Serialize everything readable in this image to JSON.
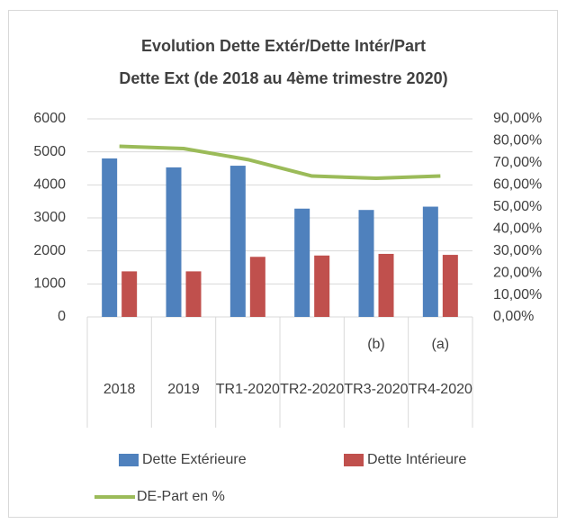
{
  "chart_data": {
    "type": "bar-line",
    "title": [
      "Evolution Dette Extér/Dette Intér/Part",
      "Dette Ext (de 2018 au 4ème trimestre 2020)"
    ],
    "categories": [
      "2018",
      "2019",
      "TR1-2020",
      "TR2-2020",
      "TR3-2020",
      "TR4-2020"
    ],
    "category_notes": [
      null,
      null,
      null,
      null,
      "(b)",
      "(a)"
    ],
    "series": [
      {
        "name": "Dette Extérieure",
        "color": "#4f81bd",
        "type": "bar",
        "values": [
          4800,
          4530,
          4580,
          3280,
          3240,
          3340
        ]
      },
      {
        "name": "Dette Intérieure",
        "color": "#c0504d",
        "type": "bar",
        "values": [
          1380,
          1380,
          1820,
          1860,
          1910,
          1880
        ]
      },
      {
        "name": "DE-Part en %",
        "color": "#9bbb59",
        "type": "line",
        "axis": "y2",
        "values": [
          77.5,
          76.5,
          71.5,
          64,
          63,
          64
        ]
      }
    ],
    "ylim": [
      0,
      6000
    ],
    "yticks": [
      0,
      1000,
      2000,
      3000,
      4000,
      5000,
      6000
    ],
    "y2lim": [
      0,
      90
    ],
    "y2ticks": [
      {
        "value": 0,
        "label": "0,00%"
      },
      {
        "value": 10,
        "label": "10,00%"
      },
      {
        "value": 20,
        "label": "20,00%"
      },
      {
        "value": 30,
        "label": "30,00%"
      },
      {
        "value": 40,
        "label": "40,00%"
      },
      {
        "value": 50,
        "label": "50,00%"
      },
      {
        "value": 60,
        "label": "60,00%"
      },
      {
        "value": 70,
        "label": "70,00%"
      },
      {
        "value": 80,
        "label": "80,00%"
      },
      {
        "value": 90,
        "label": "90,00%"
      }
    ],
    "grid": true
  }
}
